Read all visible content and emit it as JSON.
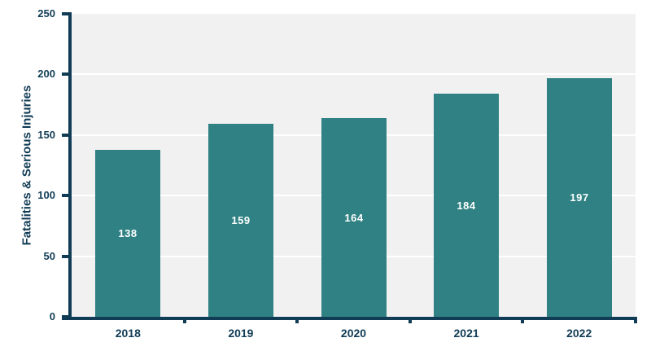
{
  "colors": {
    "page_bg": "#FFFFFF",
    "plot_bg": "#F1F1F2",
    "gridline": "#FFFFFF",
    "axis": "#113C55",
    "bar_fill": "#2F8183",
    "bar_label": "#FFFFFF"
  },
  "chart_data": {
    "type": "bar",
    "categories": [
      "2018",
      "2019",
      "2020",
      "2021",
      "2022"
    ],
    "values": [
      138,
      159,
      164,
      184,
      197
    ],
    "title": "",
    "xlabel": "",
    "ylabel": "Fatalities & Serious Injuries",
    "ylim": [
      0,
      250
    ],
    "yticks": [
      0,
      50,
      100,
      150,
      200,
      250
    ],
    "grid": true,
    "legend": "none",
    "bar_labels_inside": true
  }
}
